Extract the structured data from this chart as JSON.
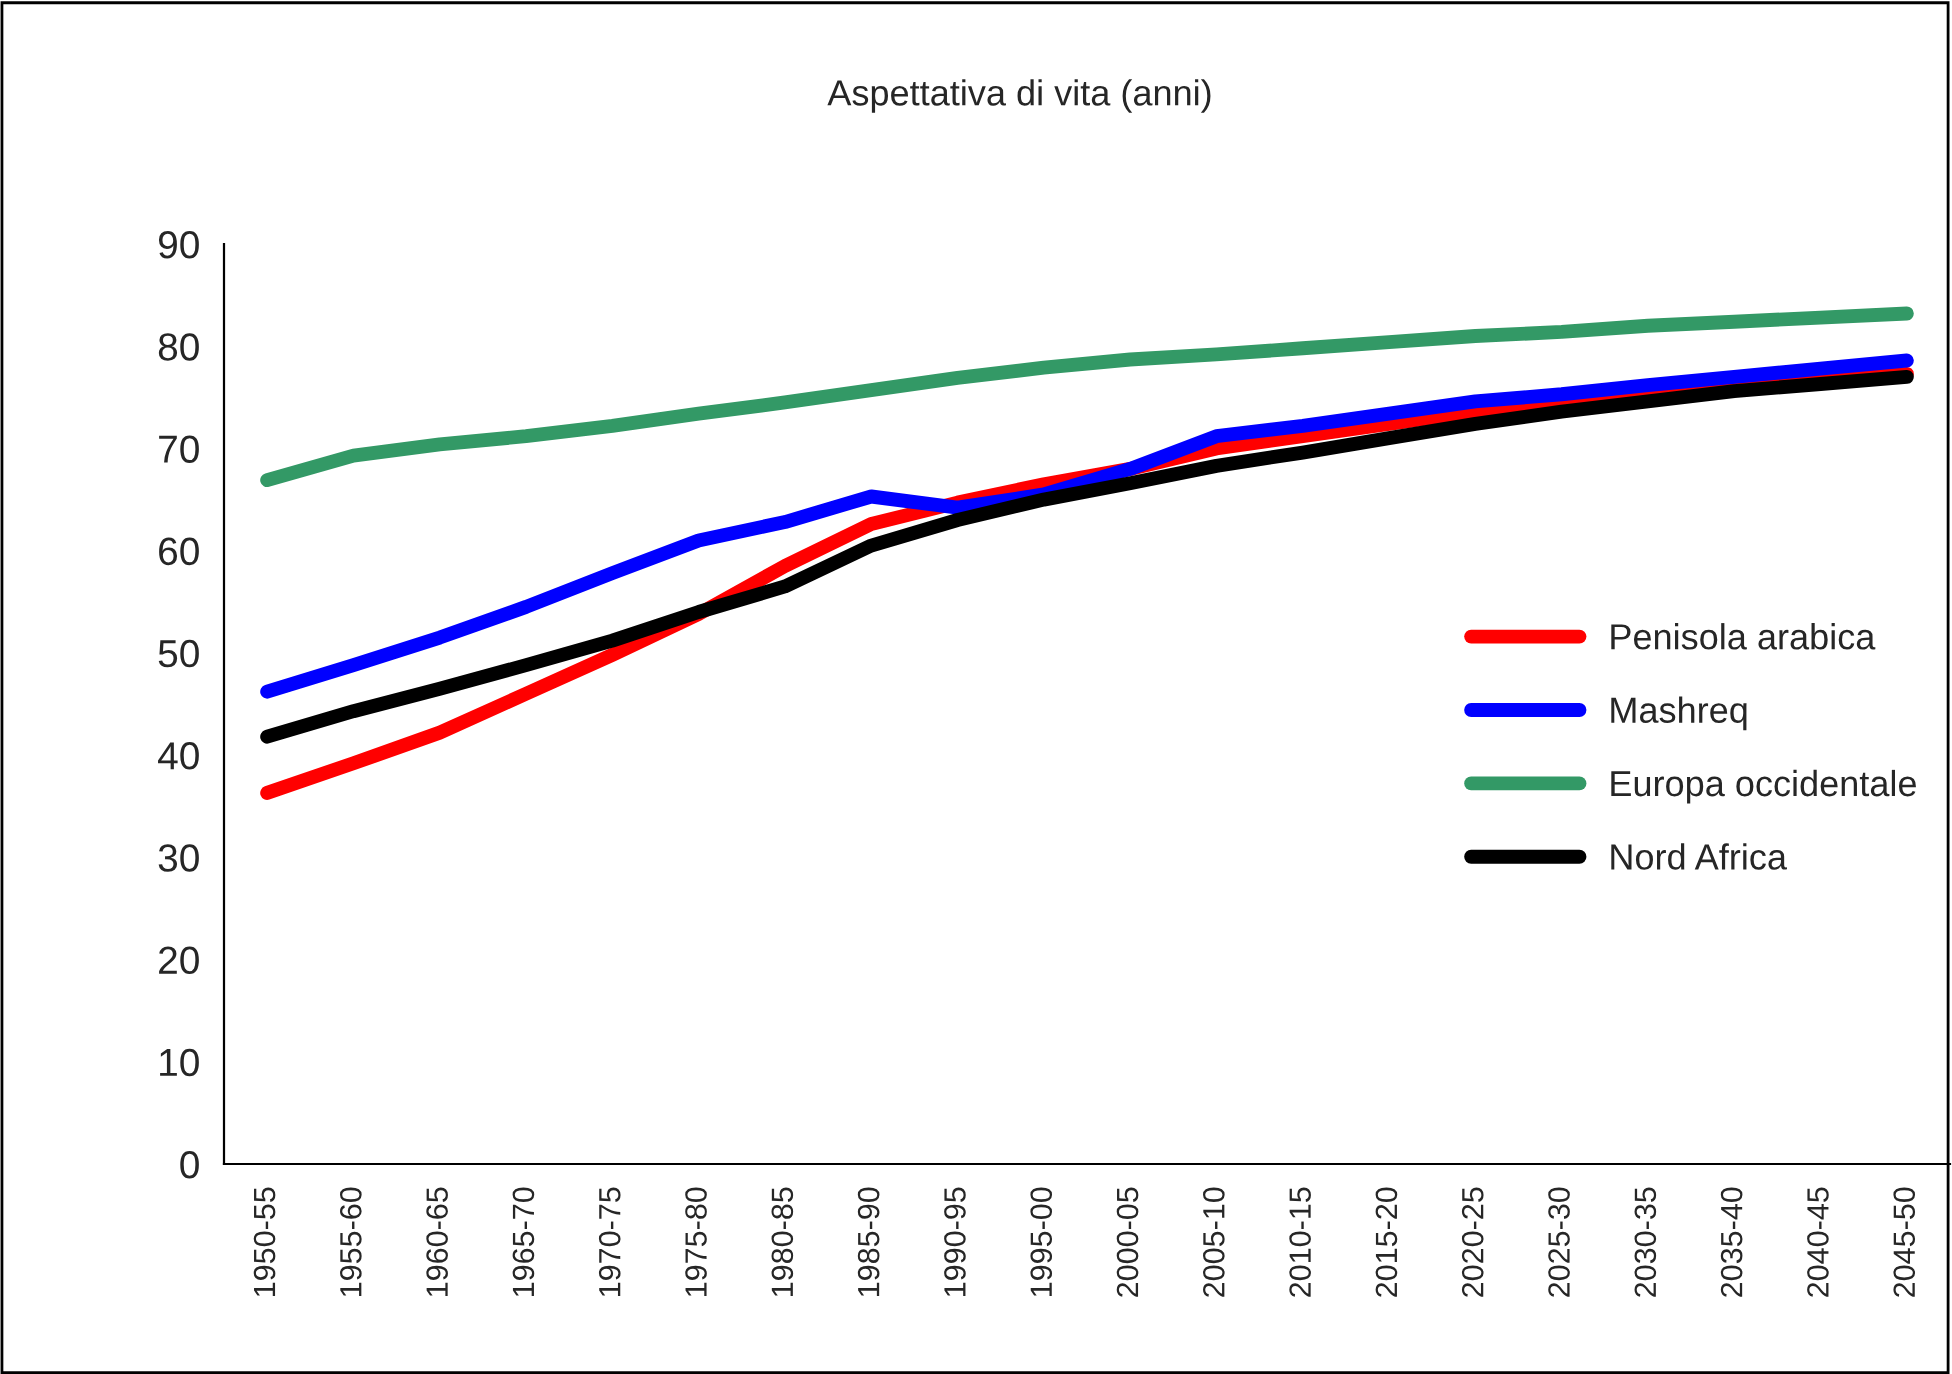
{
  "chart_data": {
    "type": "line",
    "title": "Aspettativa di vita (anni)",
    "categories": [
      "1950-55",
      "1955-60",
      "1960-65",
      "1965-70",
      "1970-75",
      "1975-80",
      "1980-85",
      "1985-90",
      "1990-95",
      "1995-00",
      "2000-05",
      "2005-10",
      "2010-15",
      "2015-20",
      "2020-25",
      "2025-30",
      "2030-35",
      "2035-40",
      "2040-45",
      "2045-50"
    ],
    "series": [
      {
        "name": "Penisola arabica",
        "color": "#ff0000",
        "values": [
          36.3,
          39.2,
          42.2,
          46.0,
          49.8,
          53.8,
          58.5,
          62.6,
          64.7,
          66.5,
          68.0,
          70.0,
          71.2,
          72.4,
          73.6,
          74.5,
          75.3,
          76.0,
          76.7,
          77.3
        ]
      },
      {
        "name": "Mashreq",
        "color": "#0000ff",
        "values": [
          46.2,
          48.8,
          51.5,
          54.5,
          57.8,
          61.0,
          62.8,
          65.3,
          64.2,
          65.5,
          68.0,
          71.2,
          72.2,
          73.4,
          74.6,
          75.3,
          76.2,
          77.0,
          77.8,
          78.6
        ]
      },
      {
        "name": "Europa occidentale",
        "color": "#339966",
        "values": [
          66.9,
          69.3,
          70.4,
          71.2,
          72.2,
          73.4,
          74.5,
          75.7,
          76.9,
          77.9,
          78.7,
          79.2,
          79.8,
          80.4,
          81.0,
          81.4,
          82.0,
          82.4,
          82.8,
          83.2
        ]
      },
      {
        "name": "Nord Africa",
        "color": "#000000",
        "values": [
          41.8,
          44.3,
          46.5,
          48.8,
          51.2,
          54.0,
          56.5,
          60.5,
          63.0,
          65.0,
          66.6,
          68.3,
          69.6,
          71.0,
          72.4,
          73.6,
          74.6,
          75.6,
          76.3,
          77.0
        ]
      }
    ],
    "ylim": [
      0,
      90
    ],
    "yticks": [
      0,
      10,
      20,
      30,
      40,
      50,
      60,
      70,
      80,
      90
    ],
    "grid": false,
    "legend": "right",
    "marker": "none",
    "line_style": "solid"
  }
}
